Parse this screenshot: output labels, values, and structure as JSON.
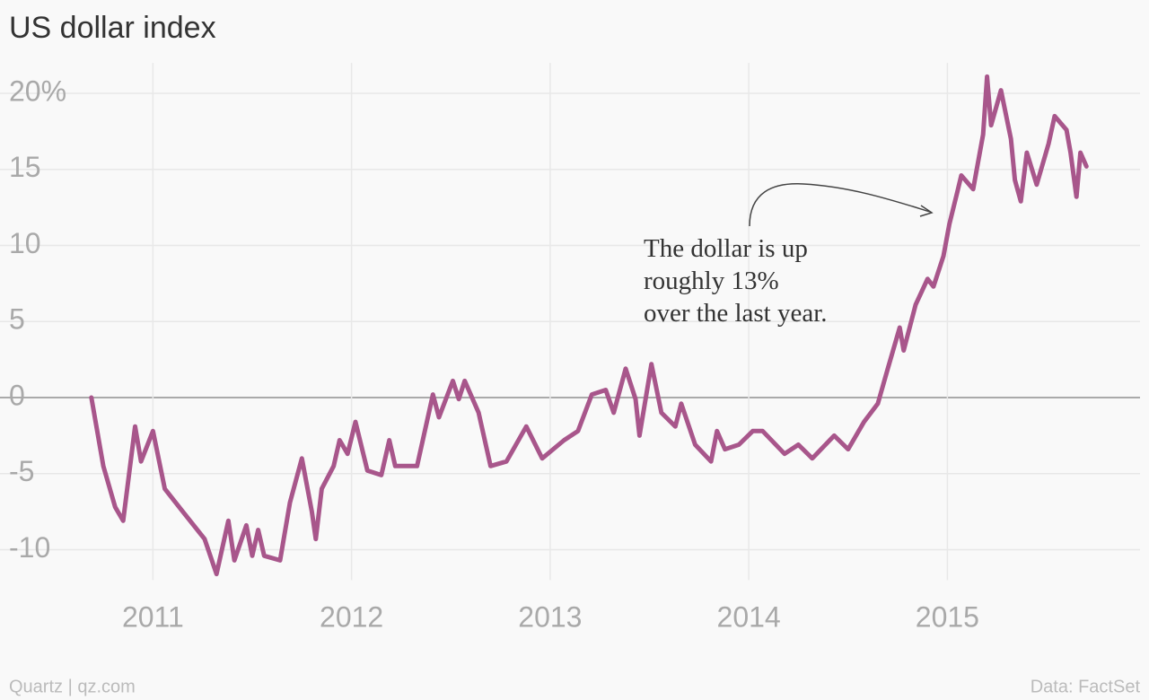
{
  "chart_data": {
    "type": "line",
    "title": "US dollar index",
    "x": [
      2010.69,
      2010.75,
      2010.81,
      2010.85,
      2010.89,
      2010.91,
      2010.94,
      2011.0,
      2011.06,
      2011.15,
      2011.26,
      2011.32,
      2011.38,
      2011.41,
      2011.47,
      2011.5,
      2011.53,
      2011.56,
      2011.64,
      2011.69,
      2011.75,
      2011.8,
      2011.82,
      2011.85,
      2011.91,
      2011.94,
      2011.98,
      2012.02,
      2012.08,
      2012.15,
      2012.19,
      2012.22,
      2012.33,
      2012.41,
      2012.44,
      2012.51,
      2012.54,
      2012.57,
      2012.64,
      2012.7,
      2012.78,
      2012.88,
      2012.96,
      2013.07,
      2013.14,
      2013.21,
      2013.28,
      2013.32,
      2013.38,
      2013.43,
      2013.45,
      2013.51,
      2013.56,
      2013.63,
      2013.66,
      2013.73,
      2013.81,
      2013.84,
      2013.88,
      2013.95,
      2014.02,
      2014.07,
      2014.18,
      2014.25,
      2014.32,
      2014.43,
      2014.5,
      2014.58,
      2014.65,
      2014.7,
      2014.76,
      2014.78,
      2014.84,
      2014.9,
      2014.93,
      2014.98,
      2015.01,
      2015.05,
      2015.07,
      2015.13,
      2015.18,
      2015.2,
      2015.22,
      2015.27,
      2015.32,
      2015.34,
      2015.37,
      2015.4,
      2015.45,
      2015.51,
      2015.54,
      2015.6,
      2015.62,
      2015.65,
      2015.67,
      2015.7
    ],
    "values": [
      0,
      -4.5,
      -7.2,
      -8.1,
      -4,
      -1.9,
      -4.2,
      -2.2,
      -6,
      -7.5,
      -9.3,
      -11.6,
      -8.1,
      -10.7,
      -8.4,
      -10.4,
      -8.7,
      -10.4,
      -10.7,
      -6.9,
      -4,
      -7.5,
      -9.3,
      -6,
      -4.5,
      -2.8,
      -3.7,
      -1.6,
      -4.8,
      -5.1,
      -2.8,
      -4.5,
      -4.5,
      0.2,
      -1.3,
      1.1,
      -0.1,
      1.1,
      -1,
      -4.5,
      -4.2,
      -1.9,
      -4,
      -2.8,
      -2.2,
      0.2,
      0.5,
      -1,
      1.9,
      -0.1,
      -2.5,
      2.2,
      -1,
      -1.9,
      -0.4,
      -3.1,
      -4.2,
      -2.2,
      -3.4,
      -3.1,
      -2.2,
      -2.2,
      -3.7,
      -3.1,
      -4,
      -2.5,
      -3.4,
      -1.6,
      -0.4,
      1.9,
      4.6,
      3.1,
      6.1,
      7.8,
      7.3,
      9.3,
      11.4,
      13.5,
      14.6,
      13.7,
      17.3,
      21.1,
      17.9,
      20.2,
      17,
      14.3,
      12.9,
      16.1,
      14,
      16.7,
      18.5,
      17.6,
      16.1,
      13.2,
      16.1,
      15.2
    ],
    "color": "#a8568b",
    "xlim": [
      2010.23,
      2015.97
    ],
    "xticks": [
      2011,
      2012,
      2013,
      2014,
      2015
    ],
    "ylim": [
      -12,
      22
    ],
    "yticks": [
      -10,
      -5,
      0,
      5,
      10,
      15,
      {
        "value": 20,
        "label": "20%"
      }
    ],
    "grid": true,
    "annotation": [
      "The dollar is up",
      "roughly 13%",
      "over the last year."
    ],
    "footer_left": "Quartz | qz.com",
    "footer_right": "Data: FactSet"
  }
}
